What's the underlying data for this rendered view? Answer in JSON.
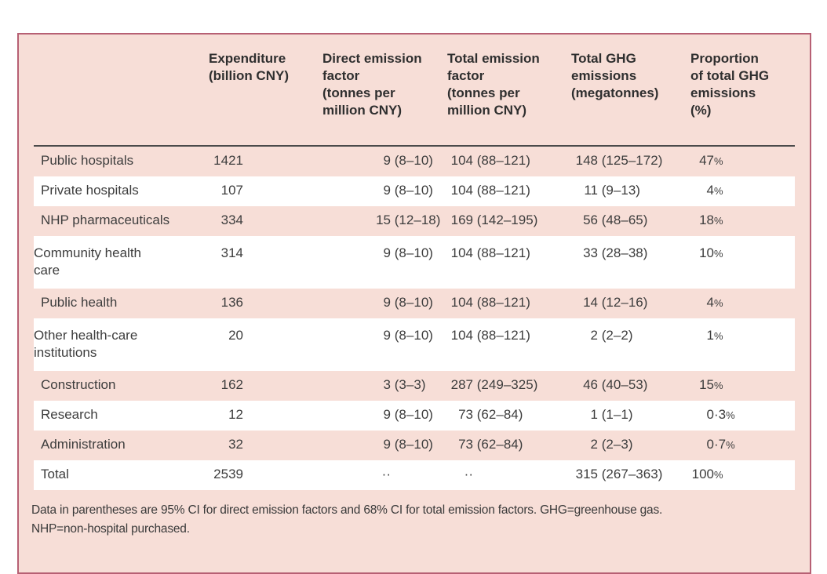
{
  "table": {
    "columns": [
      {
        "key": "label",
        "label": ""
      },
      {
        "key": "expenditure",
        "label": "Expenditure\n(billion CNY)"
      },
      {
        "key": "direct_ef",
        "label": "Direct emission\nfactor\n(tonnes per\nmillion CNY)"
      },
      {
        "key": "total_ef",
        "label": "Total emission\nfactor\n(tonnes per\nmillion CNY)"
      },
      {
        "key": "ghg",
        "label": "Total GHG\nemissions\n(megatonnes)"
      },
      {
        "key": "proportion",
        "label": "Proportion\nof total GHG\nemissions\n(%)"
      }
    ],
    "rows": [
      {
        "label": "Public hospitals",
        "cells": [
          "1421",
          "9 (8–10)",
          "104 (88–121)",
          "148 (125–172)",
          "47%"
        ]
      },
      {
        "label": "Private hospitals",
        "cells": [
          "107",
          "9 (8–10)",
          "104 (88–121)",
          "11 (9–13)",
          "4%"
        ]
      },
      {
        "label": "NHP pharmaceuticals",
        "cells": [
          "334",
          "15 (12–18)",
          "169 (142–195)",
          "56 (48–65)",
          "18%"
        ]
      },
      {
        "label": "Community health\ncare",
        "cells": [
          "314",
          "9 (8–10)",
          "104 (88–121)",
          "33 (28–38)",
          "10%"
        ]
      },
      {
        "label": "Public health",
        "cells": [
          "136",
          "9 (8–10)",
          "104 (88–121)",
          "14 (12–16)",
          "4%"
        ]
      },
      {
        "label": "Other health-care\ninstitutions",
        "cells": [
          "20",
          "9 (8–10)",
          "104 (88–121)",
          "2 (2–2)",
          "1%"
        ]
      },
      {
        "label": "Construction",
        "cells": [
          "162",
          "3 (3–3)",
          "287 (249–325)",
          "46 (40–53)",
          "15%"
        ]
      },
      {
        "label": "Research",
        "cells": [
          "12",
          "9 (8–10)",
          "73 (62–84)",
          "1 (1–1)",
          "0·3%"
        ]
      },
      {
        "label": "Administration",
        "cells": [
          "32",
          "9 (8–10)",
          "73 (62–84)",
          "2 (2–3)",
          "0·7%"
        ]
      },
      {
        "label": "Total",
        "cells": [
          "2539",
          "··",
          "··",
          "315 (267–363)",
          "100%"
        ]
      }
    ],
    "no_data_marker": "··",
    "footnote": "Data in parentheses are 95% CI for direct emission factors and 68% CI for total emission factors. GHG=greenhouse gas.\nNHP=non-hospital purchased."
  },
  "colors": {
    "card_background": "#f7ded7",
    "card_border": "#b76074",
    "stripe_white": "#ffffff",
    "header_rule": "#4b4b4b",
    "text": "#3d3d3d"
  }
}
